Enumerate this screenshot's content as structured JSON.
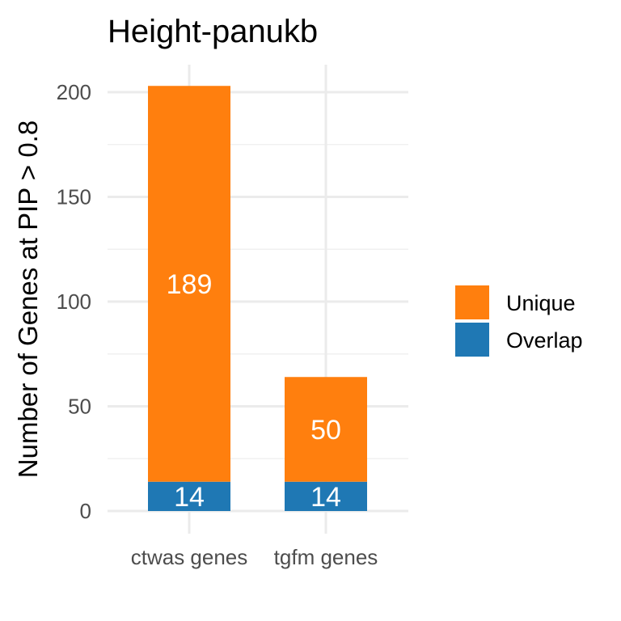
{
  "chart_data": {
    "type": "bar",
    "stacked": true,
    "title": "Height-panukb",
    "xlabel": "",
    "ylabel": "Number of Genes at PIP > 0.8",
    "categories": [
      "ctwas genes",
      "tgfm genes"
    ],
    "series": [
      {
        "name": "Overlap",
        "values": [
          14,
          14
        ],
        "color": "#1f78b4"
      },
      {
        "name": "Unique",
        "values": [
          189,
          50
        ],
        "color": "#ff7f0e"
      }
    ],
    "ylim": [
      0,
      210
    ],
    "yticks": [
      0,
      50,
      100,
      150,
      200
    ],
    "grid": true,
    "legend": {
      "position": "right",
      "order": [
        "Unique",
        "Overlap"
      ]
    }
  }
}
